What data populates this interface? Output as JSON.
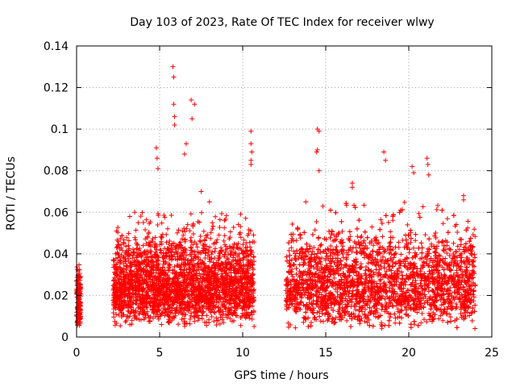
{
  "chart_data": {
    "type": "scatter",
    "title": "Day 103 of 2023, Rate Of TEC Index for receiver wlwy",
    "xlabel": "GPS time / hours",
    "ylabel": "ROTI / TECUs",
    "xlim": [
      0,
      25
    ],
    "ylim": [
      0,
      0.14
    ],
    "x_ticks": [
      0,
      5,
      10,
      15,
      20,
      25
    ],
    "x_tick_labels": [
      "0",
      "5",
      "10",
      "15",
      "20",
      "25"
    ],
    "y_ticks": [
      0,
      0.02,
      0.04,
      0.06,
      0.08,
      0.1,
      0.12,
      0.14
    ],
    "y_tick_labels": [
      "0",
      "0.02",
      "0.04",
      "0.06",
      "0.08",
      "0.1",
      "0.12",
      "0.14"
    ],
    "grid": true,
    "marker": "+",
    "color": "#ff0000",
    "data_segments": [
      {
        "x_start": 0.0,
        "x_end": 0.25,
        "y_min": 0.003,
        "y_max": 0.035,
        "density": 140
      },
      {
        "x_start": 2.2,
        "x_end": 10.7,
        "y_min": 0.005,
        "y_max": 0.06,
        "density": 2600
      },
      {
        "x_start": 12.6,
        "x_end": 24.0,
        "y_min": 0.004,
        "y_max": 0.065,
        "density": 3400
      }
    ],
    "notable_points": [
      {
        "x": 5.8,
        "y": 0.13
      },
      {
        "x": 5.85,
        "y": 0.125
      },
      {
        "x": 5.85,
        "y": 0.112
      },
      {
        "x": 6.9,
        "y": 0.114
      },
      {
        "x": 7.1,
        "y": 0.112
      },
      {
        "x": 6.95,
        "y": 0.105
      },
      {
        "x": 5.9,
        "y": 0.106
      },
      {
        "x": 5.9,
        "y": 0.102
      },
      {
        "x": 10.5,
        "y": 0.099
      },
      {
        "x": 10.5,
        "y": 0.093
      },
      {
        "x": 10.55,
        "y": 0.089
      },
      {
        "x": 10.5,
        "y": 0.085
      },
      {
        "x": 10.5,
        "y": 0.083
      },
      {
        "x": 14.5,
        "y": 0.1
      },
      {
        "x": 14.6,
        "y": 0.099
      },
      {
        "x": 14.5,
        "y": 0.09
      },
      {
        "x": 14.45,
        "y": 0.089
      },
      {
        "x": 4.8,
        "y": 0.091
      },
      {
        "x": 4.85,
        "y": 0.086
      },
      {
        "x": 4.9,
        "y": 0.081
      },
      {
        "x": 6.6,
        "y": 0.093
      },
      {
        "x": 6.5,
        "y": 0.088
      },
      {
        "x": 18.5,
        "y": 0.089
      },
      {
        "x": 18.6,
        "y": 0.085
      },
      {
        "x": 20.2,
        "y": 0.082
      },
      {
        "x": 20.3,
        "y": 0.079
      },
      {
        "x": 21.1,
        "y": 0.086
      },
      {
        "x": 21.15,
        "y": 0.083
      },
      {
        "x": 21.2,
        "y": 0.078
      },
      {
        "x": 16.6,
        "y": 0.074
      },
      {
        "x": 16.6,
        "y": 0.072
      },
      {
        "x": 23.3,
        "y": 0.068
      },
      {
        "x": 23.3,
        "y": 0.066
      },
      {
        "x": 14.6,
        "y": 0.08
      },
      {
        "x": 2.4,
        "y": 0.051
      },
      {
        "x": 3.2,
        "y": 0.058
      },
      {
        "x": 3.5,
        "y": 0.06
      },
      {
        "x": 13.8,
        "y": 0.065
      },
      {
        "x": 7.5,
        "y": 0.07
      },
      {
        "x": 8.0,
        "y": 0.065
      }
    ]
  }
}
